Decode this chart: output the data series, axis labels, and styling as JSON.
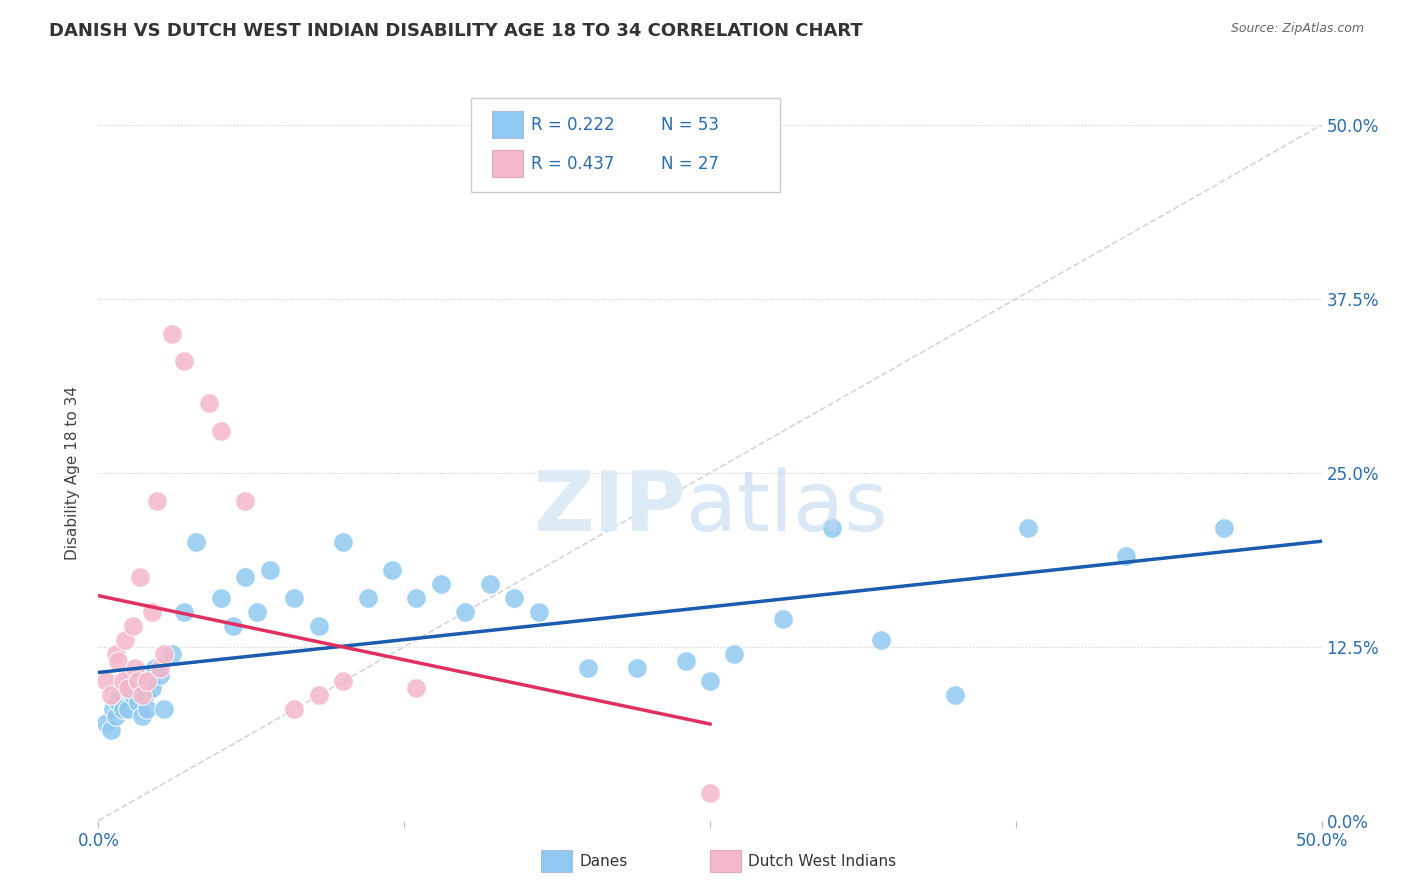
{
  "title": "DANISH VS DUTCH WEST INDIAN DISABILITY AGE 18 TO 34 CORRELATION CHART",
  "source": "Source: ZipAtlas.com",
  "ylabel": "Disability Age 18 to 34",
  "yticks_labels": [
    "0.0%",
    "12.5%",
    "25.0%",
    "37.5%",
    "50.0%"
  ],
  "ytick_vals": [
    0.0,
    12.5,
    25.0,
    37.5,
    50.0
  ],
  "xlim": [
    0.0,
    50.0
  ],
  "ylim": [
    0.0,
    50.0
  ],
  "legend_R1": "R = 0.222",
  "legend_N1": "N = 53",
  "legend_R2": "R = 0.437",
  "legend_N2": "N = 27",
  "color_danes": "#8FC8F0",
  "color_dwi": "#F5B8CA",
  "color_danes_line": "#1A5CB0",
  "color_dwi_line": "#E03060",
  "color_diagonal": "#D0D0D0",
  "title_color": "#333333",
  "axis_label_color": "#2B6CB0",
  "danes_x": [
    0.3,
    0.5,
    0.6,
    0.7,
    0.8,
    0.9,
    1.0,
    1.1,
    1.2,
    1.3,
    1.4,
    1.5,
    1.6,
    1.7,
    1.8,
    1.9,
    2.0,
    2.1,
    2.2,
    2.3,
    2.5,
    2.7,
    3.0,
    3.5,
    4.0,
    5.0,
    5.5,
    6.0,
    6.5,
    7.0,
    8.0,
    9.0,
    10.0,
    11.0,
    12.0,
    13.0,
    14.0,
    15.0,
    16.0,
    17.0,
    18.0,
    20.0,
    22.0,
    24.0,
    25.0,
    26.0,
    28.0,
    30.0,
    32.0,
    35.0,
    38.0,
    42.0,
    46.0
  ],
  "danes_y": [
    7.0,
    6.5,
    8.0,
    7.5,
    8.5,
    9.0,
    8.0,
    9.5,
    8.0,
    10.0,
    9.0,
    9.5,
    8.5,
    10.5,
    7.5,
    9.0,
    8.0,
    10.0,
    9.5,
    11.0,
    10.5,
    8.0,
    12.0,
    15.0,
    20.0,
    16.0,
    14.0,
    17.5,
    15.0,
    18.0,
    16.0,
    14.0,
    20.0,
    16.0,
    18.0,
    16.0,
    17.0,
    15.0,
    17.0,
    16.0,
    15.0,
    11.0,
    11.0,
    11.5,
    10.0,
    12.0,
    14.5,
    21.0,
    13.0,
    9.0,
    21.0,
    19.0,
    21.0
  ],
  "dwi_x": [
    0.3,
    0.5,
    0.7,
    0.8,
    1.0,
    1.1,
    1.2,
    1.4,
    1.5,
    1.6,
    1.7,
    1.8,
    2.0,
    2.2,
    2.4,
    2.5,
    2.7,
    3.0,
    3.5,
    4.5,
    5.0,
    6.0,
    8.0,
    9.0,
    10.0,
    13.0,
    25.0
  ],
  "dwi_y": [
    10.0,
    9.0,
    12.0,
    11.5,
    10.0,
    13.0,
    9.5,
    14.0,
    11.0,
    10.0,
    17.5,
    9.0,
    10.0,
    15.0,
    23.0,
    11.0,
    12.0,
    35.0,
    33.0,
    30.0,
    28.0,
    23.0,
    8.0,
    9.0,
    10.0,
    9.5,
    2.0
  ]
}
